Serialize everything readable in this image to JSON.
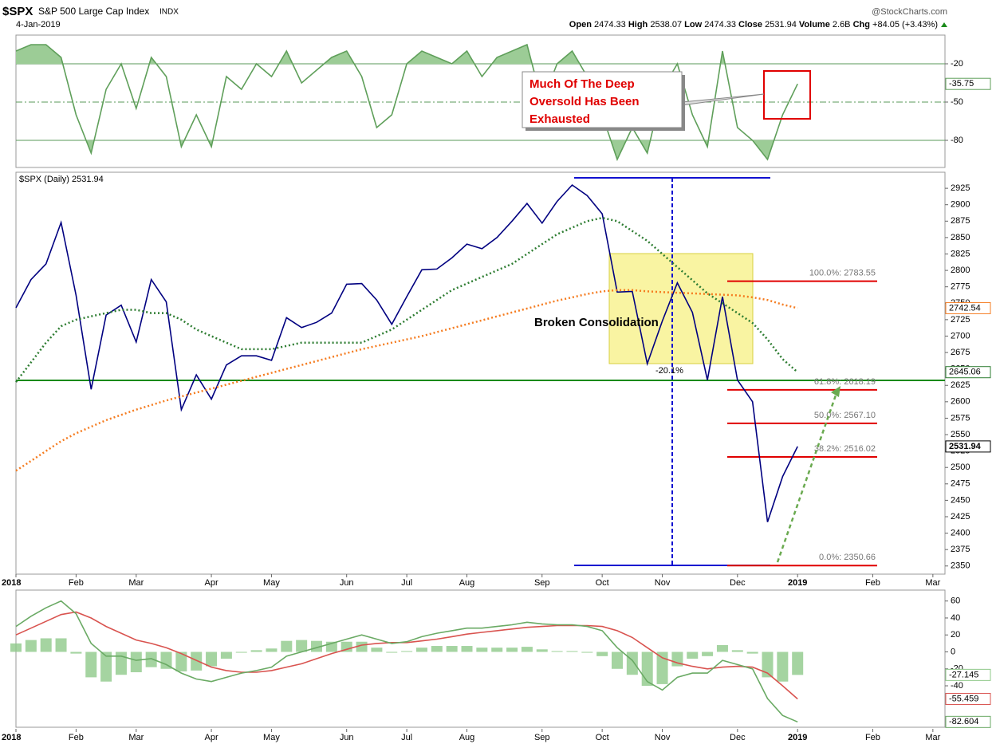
{
  "header": {
    "symbol": "$SPX",
    "name": "S&P 500 Large Cap Index",
    "exchange": "INDX",
    "date": "4-Jan-2019",
    "source": "@StockCharts.com",
    "quote": [
      {
        "label": "Open",
        "value": "2474.33"
      },
      {
        "label": "High",
        "value": "2538.07"
      },
      {
        "label": "Low",
        "value": "2474.33"
      },
      {
        "label": "Close",
        "value": "2531.94"
      },
      {
        "label": "Volume",
        "value": "2.6B"
      },
      {
        "label": "Chg",
        "value": "+84.05 (+3.43%)"
      }
    ]
  },
  "chart_data": [
    {
      "type": "line",
      "ylim": [
        -100,
        0
      ],
      "yticks": [
        -20,
        -50,
        -80
      ],
      "grid": true,
      "annotation": [
        "Much Of The Deep",
        "Oversold Has Been",
        "Exhausted"
      ],
      "series": [
        {
          "color": "#5f9f5a",
          "fill": "#9ccc96",
          "values": [
            -10,
            -5,
            -5,
            -15,
            -60,
            -90,
            -40,
            -20,
            -55,
            -15,
            -30,
            -85,
            -60,
            -85,
            -30,
            -40,
            -20,
            -30,
            -10,
            -35,
            -25,
            -15,
            -10,
            -30,
            -70,
            -60,
            -20,
            -10,
            -15,
            -20,
            -10,
            -30,
            -15,
            -10,
            -5,
            -50,
            -20,
            -10,
            -30,
            -60,
            -95,
            -70,
            -90,
            -40,
            -20,
            -60,
            -85,
            -10,
            -70,
            -80,
            -95,
            -60,
            -35.75,
            null,
            null,
            null,
            null,
            null,
            null,
            null,
            null,
            null
          ]
        }
      ]
    },
    {
      "type": "line",
      "legend": "$SPX (Daily) 2531.94",
      "ylim": [
        2340,
        2947
      ],
      "yticks": [
        2350,
        2375,
        2400,
        2425,
        2450,
        2475,
        2500,
        2525,
        2550,
        2575,
        2600,
        2625,
        2650,
        2675,
        2700,
        2725,
        2750,
        2775,
        2800,
        2825,
        2850,
        2875,
        2900,
        2925
      ],
      "grid": false,
      "annotations": [
        "Broken Consolidation",
        "-20.1%"
      ],
      "fib_levels": [
        {
          "label": "100.0%: 2783.55",
          "value": 2783.55
        },
        {
          "label": "61.8%: 2618.19",
          "value": 2618.19
        },
        {
          "label": "50.0%: 2567.10",
          "value": 2567.1
        },
        {
          "label": "38.2%: 2516.02",
          "value": 2516.02
        },
        {
          "label": "0.0%: 2350.66",
          "value": 2350.66
        }
      ],
      "categories": [
        "2018",
        null,
        null,
        null,
        "Feb",
        null,
        null,
        null,
        "Mar",
        null,
        null,
        null,
        null,
        "Apr",
        null,
        null,
        null,
        "May",
        null,
        null,
        null,
        null,
        "Jun",
        null,
        null,
        null,
        "Jul",
        null,
        null,
        null,
        "Aug",
        null,
        null,
        null,
        null,
        "Sep",
        null,
        null,
        null,
        "Oct",
        null,
        null,
        null,
        "Nov",
        null,
        null,
        null,
        null,
        "Dec",
        null,
        null,
        null,
        "2019",
        null,
        null,
        null,
        null,
        "Feb",
        null,
        null,
        null,
        "Mar"
      ],
      "series": [
        {
          "color": "#000080",
          "style": "solid",
          "values": [
            2743,
            2786,
            2810,
            2873,
            2762,
            2619,
            2732,
            2747,
            2691,
            2786,
            2752,
            2588,
            2641,
            2604,
            2656,
            2670,
            2670,
            2663,
            2728,
            2713,
            2721,
            2735,
            2779,
            2780,
            2755,
            2718,
            2760,
            2801,
            2802,
            2819,
            2840,
            2833,
            2850,
            2875,
            2902,
            2872,
            2905,
            2930,
            2914,
            2886,
            2767,
            2768,
            2658,
            2723,
            2781,
            2736,
            2633,
            2760,
            2633,
            2600,
            2417,
            2486,
            2531.94,
            null,
            null,
            null,
            null,
            null,
            null,
            null,
            null,
            null
          ]
        },
        {
          "color": "#2e7d32",
          "style": "dotted",
          "values": [
            2630,
            2660,
            2690,
            2715,
            2725,
            2730,
            2735,
            2740,
            2740,
            2735,
            2735,
            2725,
            2710,
            2700,
            2690,
            2680,
            2680,
            2680,
            2685,
            2690,
            2690,
            2690,
            2690,
            2690,
            2700,
            2710,
            2725,
            2740,
            2755,
            2770,
            2780,
            2790,
            2800,
            2810,
            2825,
            2840,
            2855,
            2865,
            2875,
            2880,
            2875,
            2860,
            2845,
            2825,
            2805,
            2785,
            2765,
            2750,
            2735,
            2720,
            2695,
            2665,
            2645.06,
            null,
            null,
            null,
            null,
            null,
            null,
            null,
            null,
            null
          ]
        },
        {
          "color": "#f57c20",
          "style": "dotted",
          "values": [
            2495,
            2510,
            2525,
            2540,
            2552,
            2562,
            2572,
            2580,
            2588,
            2595,
            2602,
            2608,
            2614,
            2620,
            2626,
            2632,
            2638,
            2644,
            2650,
            2656,
            2662,
            2668,
            2674,
            2680,
            2685,
            2690,
            2695,
            2700,
            2706,
            2712,
            2718,
            2724,
            2730,
            2736,
            2742,
            2748,
            2754,
            2759,
            2764,
            2768,
            2770,
            2770,
            2768,
            2767,
            2766,
            2765,
            2764,
            2763,
            2762,
            2759,
            2755,
            2748,
            2742.54,
            null,
            null,
            null,
            null,
            null,
            null,
            null,
            null,
            null
          ]
        }
      ]
    },
    {
      "type": "macd",
      "ylim": [
        -87,
        71
      ],
      "yticks": [
        60,
        40,
        20,
        0,
        -20,
        -40
      ],
      "grid": false,
      "categories": [
        "2018",
        null,
        null,
        null,
        "Feb",
        null,
        null,
        null,
        "Mar",
        null,
        null,
        null,
        null,
        "Apr",
        null,
        null,
        null,
        "May",
        null,
        null,
        null,
        null,
        "Jun",
        null,
        null,
        null,
        "Jul",
        null,
        null,
        null,
        "Aug",
        null,
        null,
        null,
        null,
        "Sep",
        null,
        null,
        null,
        "Oct",
        null,
        null,
        null,
        "Nov",
        null,
        null,
        null,
        null,
        "Dec",
        null,
        null,
        null,
        "2019",
        null,
        null,
        null,
        null,
        "Feb",
        null,
        null,
        null,
        "Mar"
      ],
      "series": [
        {
          "type": "bar",
          "color": "#8fc98a",
          "values": [
            10,
            14,
            16,
            16,
            -2,
            -30,
            -35,
            -27,
            -24,
            -18,
            -20,
            -23,
            -22,
            -17,
            -8,
            -1,
            2,
            4,
            13,
            14,
            13,
            12,
            12,
            12,
            5,
            -1,
            1,
            5,
            7,
            7,
            7,
            5,
            5,
            5,
            6,
            3,
            1,
            1,
            -1,
            -5,
            -20,
            -27,
            -40,
            -38,
            -17,
            -8,
            -5,
            8,
            2,
            -2,
            -30,
            -35,
            -27.145,
            null,
            null,
            null,
            null,
            null,
            null,
            null,
            null,
            null
          ]
        },
        {
          "type": "line",
          "color": "#d9534f",
          "values": [
            20,
            28,
            36,
            44,
            47,
            40,
            30,
            22,
            14,
            10,
            5,
            -2,
            -10,
            -18,
            -22,
            -24,
            -24,
            -22,
            -18,
            -14,
            -8,
            -2,
            3,
            8,
            10,
            11,
            11,
            13,
            15,
            18,
            21,
            23,
            25,
            27,
            29,
            30,
            31,
            31,
            31,
            30,
            25,
            17,
            5,
            -7,
            -13,
            -17,
            -20,
            -18,
            -17,
            -18,
            -25,
            -40,
            -55.459,
            null,
            null,
            null,
            null,
            null,
            null,
            null,
            null,
            null
          ]
        },
        {
          "type": "line",
          "color": "#6aaa64",
          "values": [
            30,
            42,
            52,
            60,
            45,
            10,
            -5,
            -5,
            -10,
            -8,
            -15,
            -25,
            -32,
            -35,
            -30,
            -25,
            -22,
            -18,
            -5,
            0,
            5,
            10,
            15,
            20,
            15,
            10,
            12,
            18,
            22,
            25,
            28,
            28,
            30,
            32,
            35,
            33,
            32,
            32,
            30,
            25,
            5,
            -10,
            -35,
            -45,
            -30,
            -25,
            -25,
            -10,
            -15,
            -20,
            -55,
            -75,
            -82.604,
            null,
            null,
            null,
            null,
            null,
            null,
            null,
            null,
            null
          ]
        }
      ]
    }
  ]
}
